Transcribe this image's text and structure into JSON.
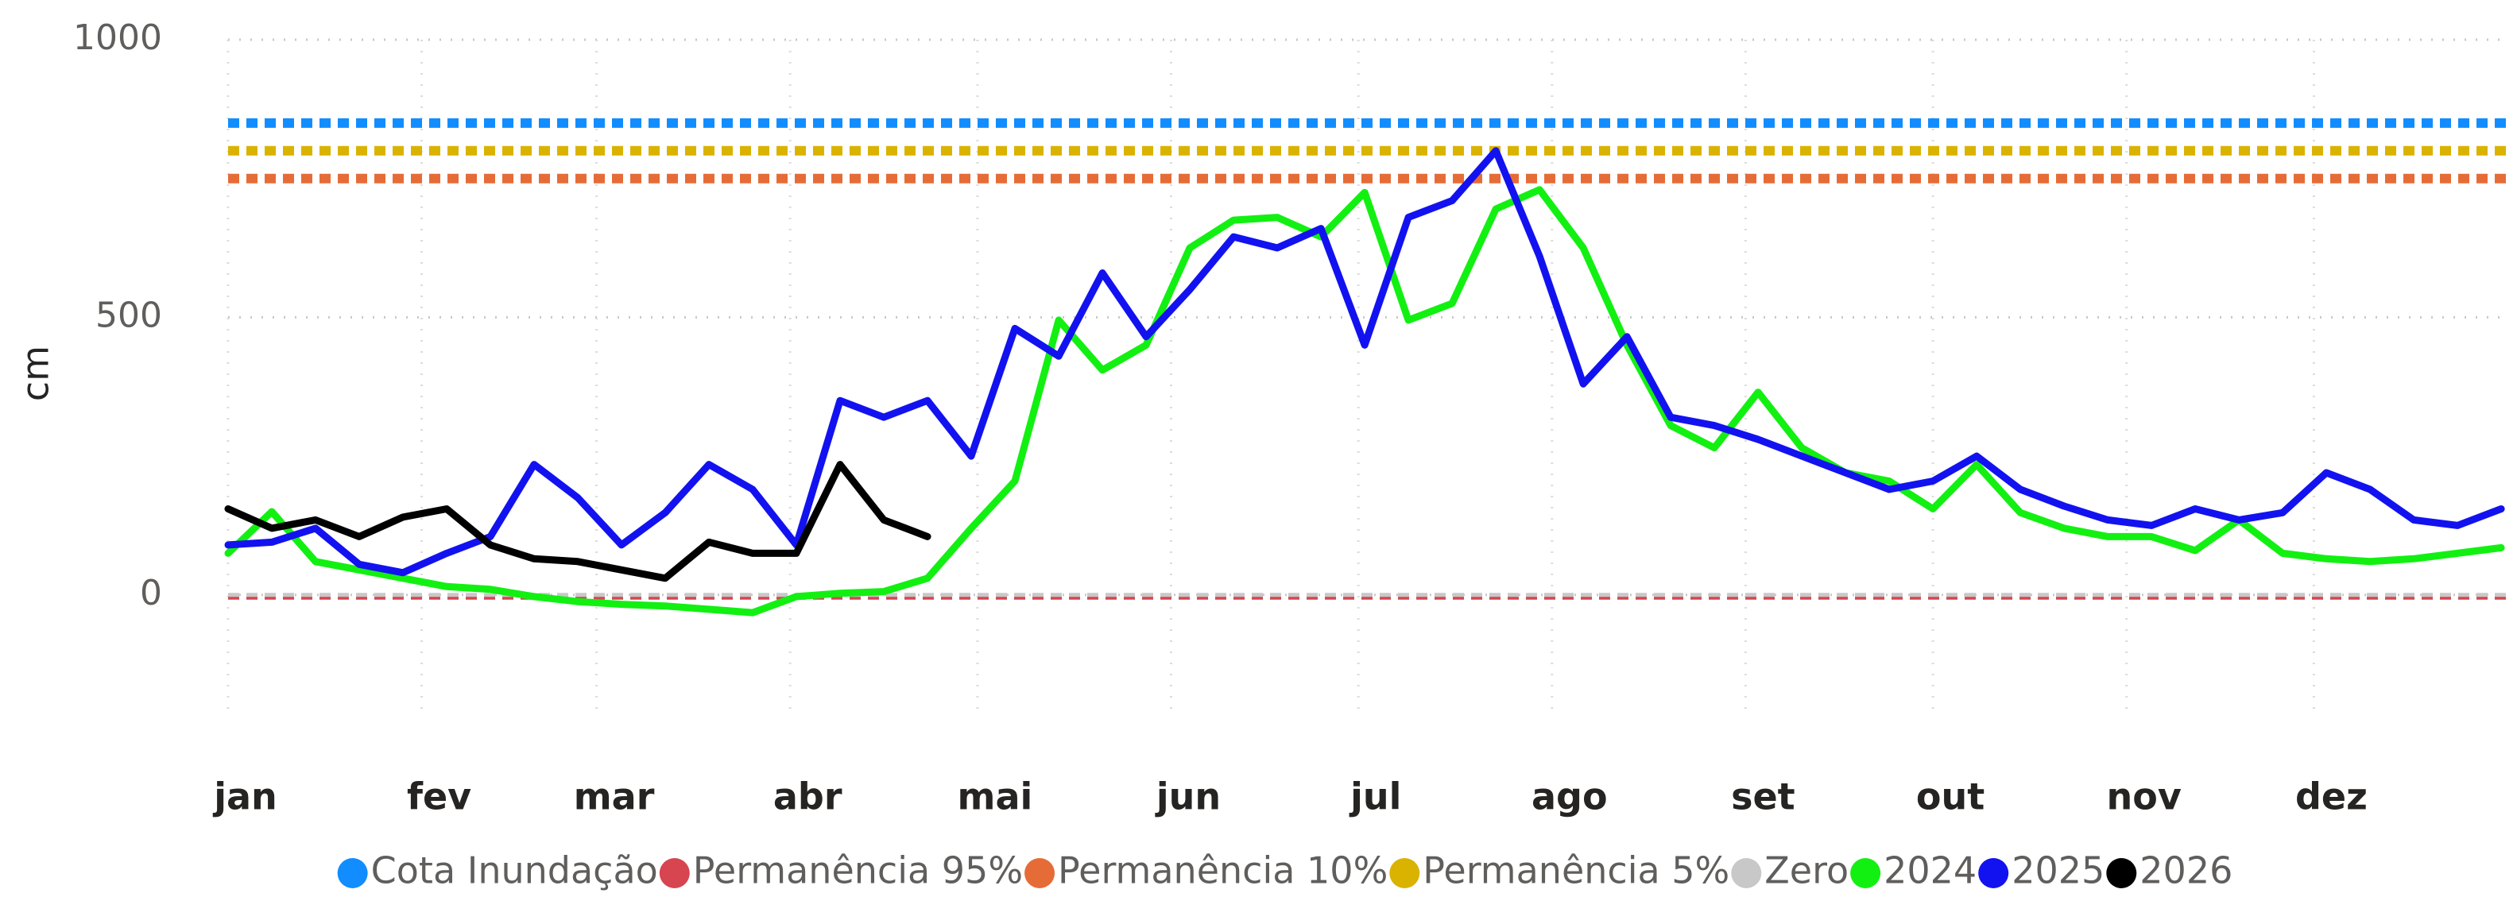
{
  "chart_data": {
    "type": "line",
    "y_label": "cm",
    "x": [
      1,
      8,
      15,
      22,
      29,
      36,
      43,
      50,
      57,
      64,
      71,
      78,
      85,
      92,
      99,
      106,
      113,
      120,
      127,
      134,
      141,
      148,
      155,
      162,
      169,
      176,
      183,
      190,
      197,
      204,
      211,
      218,
      225,
      232,
      239,
      246,
      253,
      260,
      267,
      274,
      281,
      288,
      295,
      302,
      309,
      316,
      323,
      330,
      337,
      344,
      351,
      358,
      365
    ],
    "xlim": [
      1,
      366
    ],
    "xticks": [
      {
        "value": 1,
        "label": "jan"
      },
      {
        "value": 32,
        "label": "fev"
      },
      {
        "value": 60,
        "label": "mar"
      },
      {
        "value": 91,
        "label": "abr"
      },
      {
        "value": 121,
        "label": "mai"
      },
      {
        "value": 152,
        "label": "jun"
      },
      {
        "value": 182,
        "label": "jul"
      },
      {
        "value": 213,
        "label": "ago"
      },
      {
        "value": 244,
        "label": "set"
      },
      {
        "value": 274,
        "label": "out"
      },
      {
        "value": 305,
        "label": "nov"
      },
      {
        "value": 335,
        "label": "dez"
      }
    ],
    "ylim": [
      -215,
      1000
    ],
    "yticks": [
      0,
      500,
      1000
    ],
    "grid": true,
    "legend": "bottom",
    "reference_lines": [
      {
        "name": "Cota Inundação",
        "color": "#118DFF",
        "value": 850
      },
      {
        "name": "Permanência 95%",
        "color": "#D64550",
        "value": -5
      },
      {
        "name": "Permanência 10%",
        "color": "#E66C37",
        "value": 750
      },
      {
        "name": "Permanência 5%",
        "color": "#D9B300",
        "value": 800
      },
      {
        "name": "Zero",
        "color": "#C8C8C8",
        "value": 0
      }
    ],
    "series": [
      {
        "name": "2024",
        "color": "#12F012",
        "values": [
          75,
          150,
          60,
          45,
          30,
          15,
          10,
          -3,
          -12,
          -17,
          -20,
          -26,
          -32,
          -3,
          3,
          6,
          30,
          120,
          205,
          495,
          405,
          450,
          625,
          675,
          680,
          645,
          725,
          495,
          525,
          695,
          730,
          625,
          450,
          305,
          265,
          365,
          265,
          220,
          205,
          155,
          235,
          148,
          120,
          105,
          105,
          80,
          135,
          75,
          65,
          60,
          65,
          75,
          85
        ]
      },
      {
        "name": "2025",
        "color": "#1212F0",
        "values": [
          90,
          95,
          120,
          55,
          40,
          75,
          105,
          235,
          175,
          90,
          148,
          235,
          190,
          90,
          350,
          320,
          350,
          250,
          480,
          430,
          580,
          465,
          550,
          645,
          625,
          660,
          450,
          680,
          710,
          800,
          610,
          380,
          465,
          320,
          305,
          280,
          250,
          220,
          190,
          205,
          250,
          190,
          160,
          135,
          125,
          155,
          135,
          148,
          220,
          190,
          135,
          125,
          155
        ]
      },
      {
        "name": "2026",
        "color": "#000000",
        "values": [
          155,
          120,
          135,
          105,
          140,
          155,
          90,
          65,
          60,
          45,
          30,
          95,
          75,
          75,
          235,
          135,
          105,
          null,
          null,
          null,
          null,
          null,
          null,
          null,
          null,
          null,
          null,
          null,
          null,
          null,
          null,
          null,
          null,
          null,
          null,
          null,
          null,
          null,
          null,
          null,
          null,
          null,
          null,
          null,
          null,
          null,
          null,
          null,
          null,
          null,
          null,
          null,
          null
        ]
      }
    ]
  }
}
